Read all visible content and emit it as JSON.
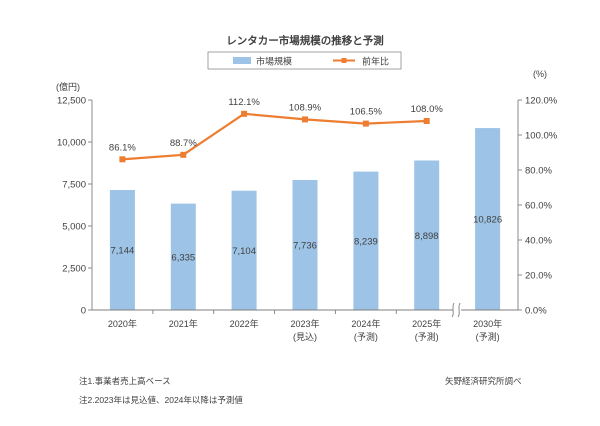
{
  "chart_data": {
    "type": "bar",
    "title": "レンタカー市場規模の推移と予測",
    "categories": [
      "2020年",
      "2021年",
      "2022年",
      "2023年",
      "2024年",
      "2025年",
      "2030年"
    ],
    "category_notes": [
      "",
      "",
      "",
      "(見込)",
      "(予測)",
      "(予測)",
      "(予測)"
    ],
    "series": [
      {
        "name": "市場規模",
        "type": "bar",
        "axis": "left",
        "color": "#9DC3E6",
        "values": [
          7144,
          6335,
          7104,
          7736,
          8239,
          8898,
          10826
        ],
        "labels": [
          "7,144",
          "6,335",
          "7,104",
          "7,736",
          "8,239",
          "8,898",
          "10,826"
        ]
      },
      {
        "name": "前年比",
        "type": "line",
        "axis": "right",
        "color": "#ED7D31",
        "values": [
          86.1,
          88.7,
          112.1,
          108.9,
          106.5,
          108.0,
          null
        ],
        "labels": [
          "86.1%",
          "88.7%",
          "112.1%",
          "108.9%",
          "106.5%",
          "108.0%",
          ""
        ]
      }
    ],
    "y_left": {
      "label": "(億円)",
      "range": [
        0,
        12500
      ],
      "tick_values": [
        0,
        2500,
        5000,
        7500,
        10000,
        12500
      ],
      "tick_labels": [
        "0",
        "2,500",
        "5,000",
        "7,500",
        "10,000",
        "12,500"
      ]
    },
    "y_right": {
      "label": "(%)",
      "range": [
        0,
        120
      ],
      "tick_values": [
        0,
        20,
        40,
        60,
        80,
        100,
        120
      ],
      "tick_labels": [
        "0.0%",
        "20.0%",
        "40.0%",
        "60.0%",
        "80.0%",
        "100.0%",
        "120.0%"
      ]
    },
    "axis_break_after_index": 5,
    "grid": false,
    "legend_position": "top"
  },
  "notes": [
    "注1.事業者売上高ベース",
    "注2.2023年は見込値、2024年以降は予測値"
  ],
  "source": "矢野経済研究所調べ",
  "colors": {
    "axis": "#7F7F7F"
  }
}
